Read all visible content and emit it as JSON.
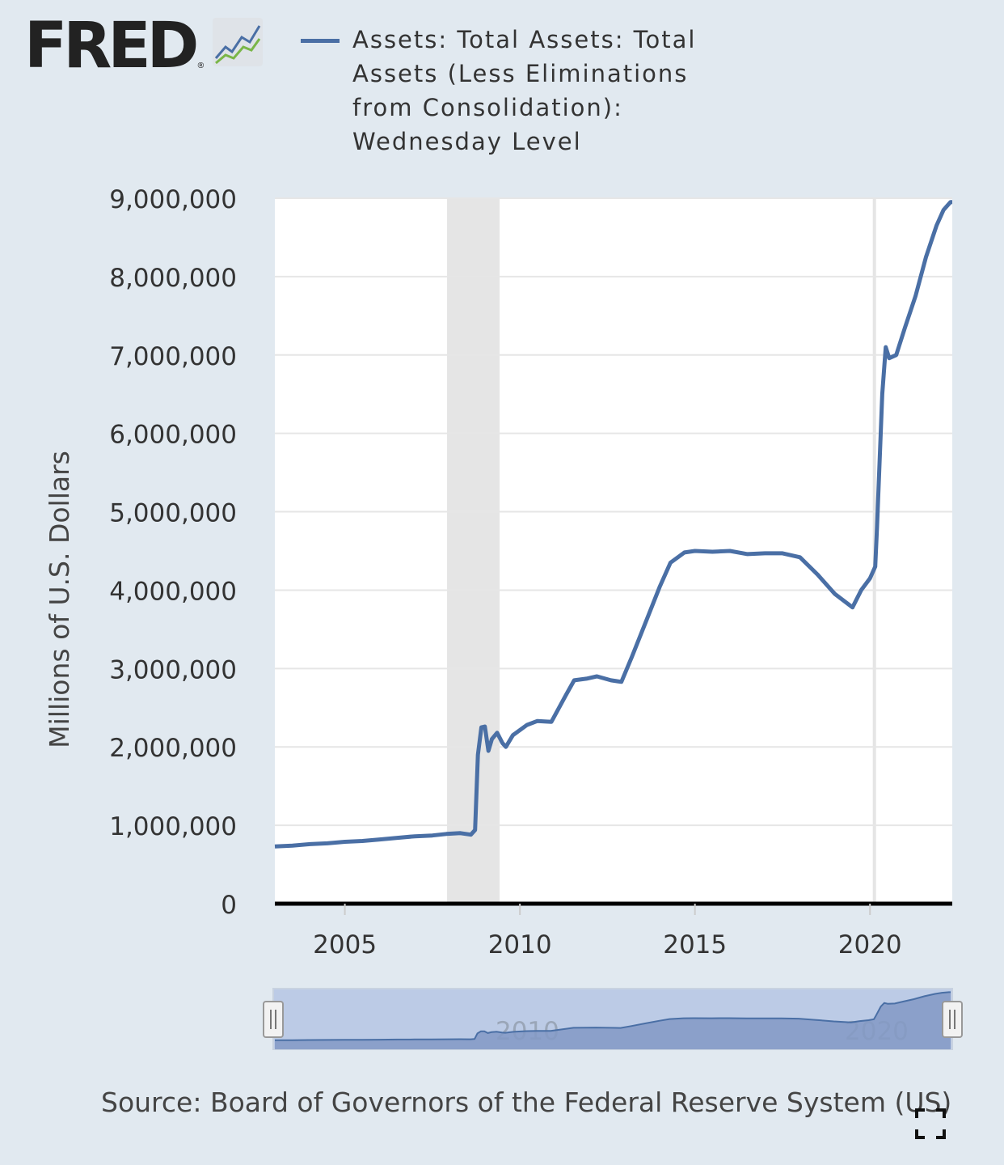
{
  "branding": {
    "logo_text": "FRED",
    "logo_mark": "®"
  },
  "legend": {
    "label": "Assets: Total Assets: Total\nAssets (Less Eliminations\nfrom Consolidation):\nWednesday Level",
    "color": "#4a6fa5"
  },
  "source_text": "Source: Board of Governors of the Federal Reserve System (US)",
  "icons": {
    "expand": "fullscreen-expand-icon",
    "logo": "line-chart-icon"
  },
  "chart_data": {
    "type": "line",
    "title": "",
    "ylabel": "Millions of U.S. Dollars",
    "xlabel": "",
    "xlim": [
      2003.0,
      2022.35
    ],
    "ylim": [
      0,
      9000000
    ],
    "grid": true,
    "legend_position": "top",
    "x_ticks": [
      2005,
      2010,
      2015,
      2020
    ],
    "x_tick_labels": [
      "2005",
      "2010",
      "2015",
      "2020"
    ],
    "y_ticks": [
      0,
      1000000,
      2000000,
      3000000,
      4000000,
      5000000,
      6000000,
      7000000,
      8000000,
      9000000
    ],
    "y_tick_labels": [
      "0",
      "1,000,000",
      "2,000,000",
      "3,000,000",
      "4,000,000",
      "5,000,000",
      "6,000,000",
      "7,000,000",
      "8,000,000",
      "9,000,000"
    ],
    "recession_bands": [
      [
        2007.92,
        2009.42
      ],
      [
        2020.08,
        2020.17
      ]
    ],
    "series": [
      {
        "name": "Assets: Total Assets: Total Assets (Less Eliminations from Consolidation): Wednesday Level",
        "color": "#4a6fa5",
        "points": [
          [
            2003.0,
            730000
          ],
          [
            2003.5,
            740000
          ],
          [
            2004.0,
            760000
          ],
          [
            2004.5,
            770000
          ],
          [
            2005.0,
            790000
          ],
          [
            2005.5,
            800000
          ],
          [
            2006.0,
            820000
          ],
          [
            2006.5,
            840000
          ],
          [
            2007.0,
            860000
          ],
          [
            2007.5,
            870000
          ],
          [
            2007.9,
            890000
          ],
          [
            2008.3,
            900000
          ],
          [
            2008.6,
            880000
          ],
          [
            2008.72,
            940000
          ],
          [
            2008.8,
            1900000
          ],
          [
            2008.9,
            2250000
          ],
          [
            2009.0,
            2260000
          ],
          [
            2009.1,
            1950000
          ],
          [
            2009.2,
            2100000
          ],
          [
            2009.35,
            2180000
          ],
          [
            2009.5,
            2050000
          ],
          [
            2009.6,
            2000000
          ],
          [
            2009.8,
            2150000
          ],
          [
            2010.2,
            2280000
          ],
          [
            2010.5,
            2330000
          ],
          [
            2010.9,
            2320000
          ],
          [
            2011.3,
            2650000
          ],
          [
            2011.55,
            2850000
          ],
          [
            2011.9,
            2870000
          ],
          [
            2012.2,
            2900000
          ],
          [
            2012.6,
            2850000
          ],
          [
            2012.9,
            2830000
          ],
          [
            2013.2,
            3150000
          ],
          [
            2013.6,
            3600000
          ],
          [
            2014.0,
            4050000
          ],
          [
            2014.3,
            4350000
          ],
          [
            2014.7,
            4480000
          ],
          [
            2015.0,
            4500000
          ],
          [
            2015.5,
            4490000
          ],
          [
            2016.0,
            4500000
          ],
          [
            2016.5,
            4460000
          ],
          [
            2017.0,
            4470000
          ],
          [
            2017.5,
            4470000
          ],
          [
            2018.0,
            4420000
          ],
          [
            2018.5,
            4200000
          ],
          [
            2019.0,
            3950000
          ],
          [
            2019.5,
            3780000
          ],
          [
            2019.75,
            4000000
          ],
          [
            2020.0,
            4150000
          ],
          [
            2020.15,
            4300000
          ],
          [
            2020.2,
            4800000
          ],
          [
            2020.35,
            6500000
          ],
          [
            2020.45,
            7100000
          ],
          [
            2020.55,
            6960000
          ],
          [
            2020.75,
            7000000
          ],
          [
            2021.0,
            7350000
          ],
          [
            2021.3,
            7750000
          ],
          [
            2021.6,
            8250000
          ],
          [
            2021.9,
            8650000
          ],
          [
            2022.1,
            8850000
          ],
          [
            2022.3,
            8950000
          ],
          [
            2022.35,
            8950000
          ]
        ]
      }
    ],
    "navigator": {
      "x_tick_labels": [
        "2010",
        "2020"
      ],
      "x_ticks": [
        2010,
        2020
      ]
    }
  }
}
